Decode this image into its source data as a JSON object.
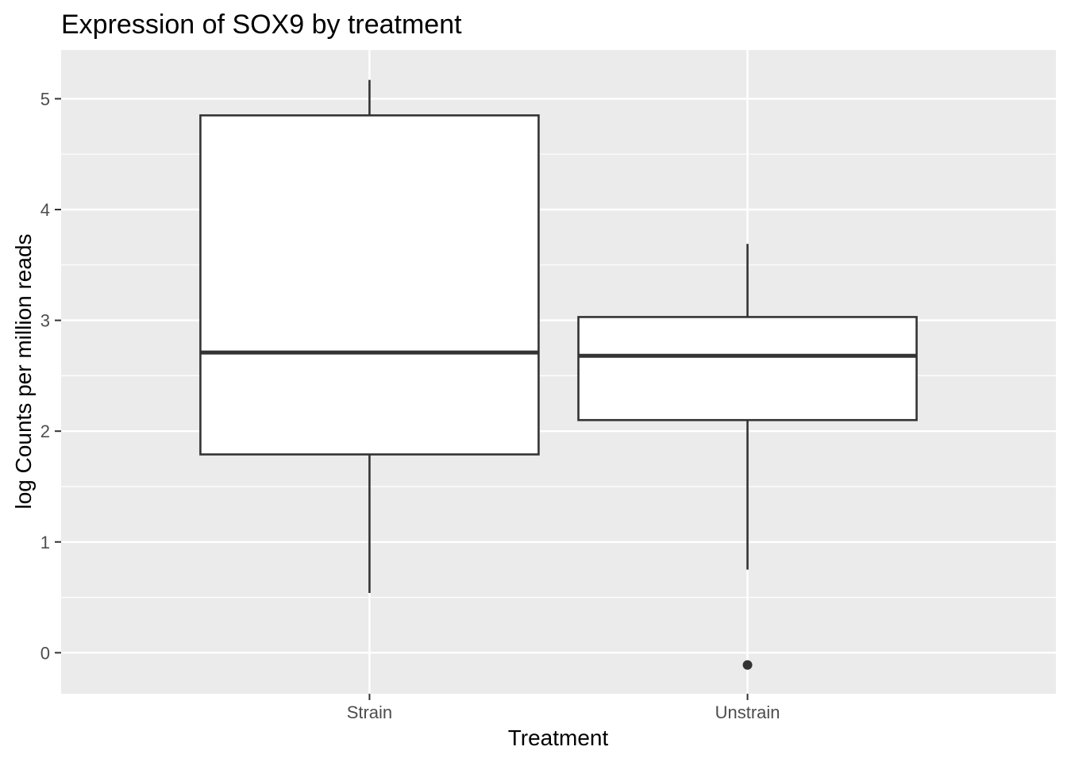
{
  "chart_data": {
    "type": "box",
    "title": "Expression of SOX9 by treatment",
    "xlabel": "Treatment",
    "ylabel": "log Counts per million reads",
    "categories": [
      "Strain",
      "Unstrain"
    ],
    "boxes": [
      {
        "category": "Strain",
        "whisker_low": 0.54,
        "q1": 1.79,
        "median": 2.71,
        "q3": 4.85,
        "whisker_high": 5.17,
        "outliers": []
      },
      {
        "category": "Unstrain",
        "whisker_low": 0.75,
        "q1": 2.1,
        "median": 2.68,
        "q3": 3.03,
        "whisker_high": 3.69,
        "outliers": [
          -0.11
        ]
      }
    ],
    "ylim": [
      -0.37,
      5.44
    ],
    "yticks": [
      0,
      1,
      2,
      3,
      4,
      5
    ],
    "grid": true,
    "colors": {
      "panel": "#ebebeb",
      "grid": "#ffffff",
      "box_fill": "#ffffff",
      "box_stroke": "#333333",
      "tick_text": "#4d4d4d"
    }
  }
}
